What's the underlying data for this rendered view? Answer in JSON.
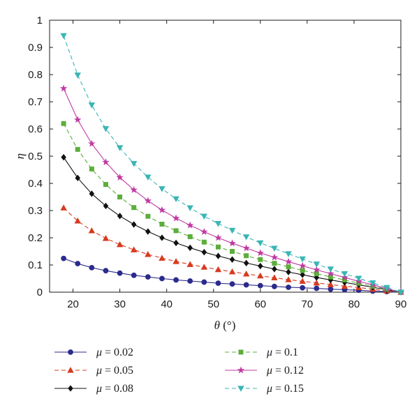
{
  "chart_data": {
    "type": "line",
    "title": "",
    "xlabel": "θ (°)",
    "xlabel_symbol": "θ",
    "xlabel_unit": " (°)",
    "ylabel": "η",
    "xlim": [
      15,
      90
    ],
    "ylim": [
      0,
      1
    ],
    "xticks": [
      20,
      30,
      40,
      50,
      60,
      70,
      80,
      90
    ],
    "yticks": [
      0,
      0.1,
      0.2,
      0.3,
      0.4,
      0.5,
      0.6,
      0.7,
      0.8,
      0.9,
      1
    ],
    "ytick_labels": [
      "0",
      "0.1",
      "0.2",
      "0.3",
      "0.4",
      "0.5",
      "0.6",
      "0.7",
      "0.8",
      "0.9",
      "1"
    ],
    "grid": false,
    "legend_position": "bottom",
    "x": [
      18,
      21,
      24,
      27,
      30,
      33,
      36,
      39,
      42,
      45,
      48,
      51,
      54,
      57,
      60,
      63,
      66,
      69,
      72,
      75,
      78,
      81,
      84,
      87,
      90
    ],
    "series": [
      {
        "name": "μ = 0.02",
        "name_symbol": "μ",
        "name_value": " = 0.02",
        "color": "#2b2b8c",
        "dash": "solid",
        "marker": "circle",
        "values": [
          0.124,
          0.105,
          0.09,
          0.079,
          0.07,
          0.062,
          0.056,
          0.05,
          0.045,
          0.041,
          0.037,
          0.033,
          0.03,
          0.027,
          0.024,
          0.021,
          0.018,
          0.016,
          0.014,
          0.011,
          0.009,
          0.007,
          0.004,
          0.002,
          0.0
        ]
      },
      {
        "name": "μ = 0.05",
        "name_symbol": "μ",
        "name_value": " = 0.05",
        "color": "#d73b1f",
        "dash": "dashed",
        "marker": "triangle-up",
        "values": [
          0.31,
          0.262,
          0.226,
          0.198,
          0.175,
          0.156,
          0.139,
          0.125,
          0.113,
          0.102,
          0.092,
          0.083,
          0.075,
          0.067,
          0.06,
          0.053,
          0.046,
          0.04,
          0.034,
          0.028,
          0.022,
          0.017,
          0.011,
          0.005,
          0.0
        ]
      },
      {
        "name": "μ = 0.08",
        "name_symbol": "μ",
        "name_value": " = 0.08",
        "color": "#111111",
        "dash": "solid",
        "marker": "diamond",
        "values": [
          0.496,
          0.42,
          0.362,
          0.317,
          0.28,
          0.249,
          0.223,
          0.2,
          0.181,
          0.163,
          0.147,
          0.133,
          0.12,
          0.107,
          0.096,
          0.085,
          0.074,
          0.064,
          0.054,
          0.045,
          0.036,
          0.027,
          0.018,
          0.009,
          0.0
        ]
      },
      {
        "name": "μ = 0.1",
        "name_symbol": "μ",
        "name_value": " = 0.1",
        "color": "#5cae3a",
        "dash": "dashed",
        "marker": "square",
        "values": [
          0.62,
          0.525,
          0.453,
          0.396,
          0.35,
          0.311,
          0.279,
          0.25,
          0.226,
          0.204,
          0.184,
          0.166,
          0.15,
          0.134,
          0.12,
          0.106,
          0.093,
          0.08,
          0.068,
          0.056,
          0.045,
          0.033,
          0.022,
          0.011,
          0.0
        ]
      },
      {
        "name": "μ = 0.12",
        "name_symbol": "μ",
        "name_value": " = 0.12",
        "color": "#c03aa3",
        "dash": "solid",
        "marker": "star",
        "values": [
          0.749,
          0.634,
          0.546,
          0.478,
          0.422,
          0.376,
          0.336,
          0.302,
          0.272,
          0.246,
          0.222,
          0.2,
          0.18,
          0.162,
          0.144,
          0.128,
          0.112,
          0.097,
          0.082,
          0.068,
          0.054,
          0.04,
          0.027,
          0.013,
          0.0
        ]
      },
      {
        "name": "μ = 0.15",
        "name_symbol": "μ",
        "name_value": " = 0.15",
        "color": "#3ab5b5",
        "dash": "dashed",
        "marker": "triangle-down",
        "values": [
          0.943,
          0.798,
          0.688,
          0.601,
          0.531,
          0.473,
          0.423,
          0.38,
          0.343,
          0.31,
          0.279,
          0.252,
          0.227,
          0.203,
          0.181,
          0.161,
          0.141,
          0.122,
          0.103,
          0.085,
          0.068,
          0.051,
          0.034,
          0.017,
          0.0
        ]
      }
    ]
  }
}
